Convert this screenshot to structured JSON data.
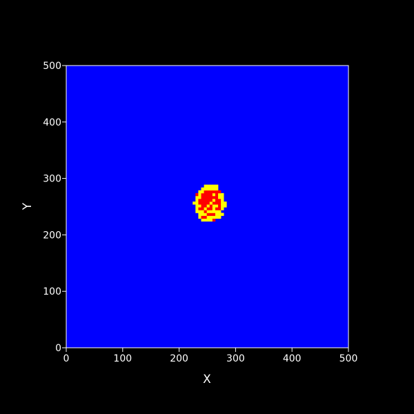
{
  "chart_data": {
    "type": "heatmap",
    "title": "",
    "xlabel": "X",
    "ylabel": "Y",
    "xlim": [
      0,
      500
    ],
    "ylim": [
      0,
      500
    ],
    "x_ticks": [
      "0",
      "100",
      "200",
      "300",
      "400",
      "500"
    ],
    "y_ticks": [
      "0",
      "100",
      "200",
      "300",
      "400",
      "500"
    ],
    "grid": false,
    "legend": "none",
    "cell_size": 5,
    "background_state": "blue",
    "colors": {
      "blue": "#0000ff",
      "yellow": "#ffff00",
      "red": "#ff0000",
      "frame": "#ffffff",
      "page": "#000000"
    },
    "cluster": {
      "center": [
        251,
        253
      ],
      "outer_radius_x": 27,
      "outer_radius_y": 34,
      "inner_radius_x": 20,
      "inner_radius_y": 23,
      "outer_state": "yellow",
      "inner_state": "red",
      "edge_noise": 4
    }
  }
}
